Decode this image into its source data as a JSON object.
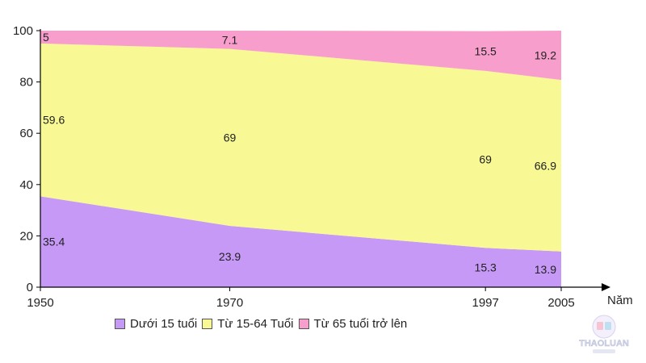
{
  "chart_data": {
    "type": "area",
    "stacked": true,
    "title": "",
    "xlabel": "Năm",
    "ylabel": "",
    "ylim": [
      0,
      100
    ],
    "yticks": [
      0,
      20,
      40,
      60,
      80,
      100
    ],
    "x": [
      1950,
      1970,
      1997,
      2005
    ],
    "series": [
      {
        "name": "Dưới 15 tuổi",
        "color": "#c699f7",
        "values": [
          35.4,
          23.9,
          15.3,
          13.9
        ]
      },
      {
        "name": "Từ 15-64 Tuổi",
        "color": "#f8f895",
        "values": [
          59.6,
          69,
          69,
          66.9
        ]
      },
      {
        "name": "Từ 65 tuổi trở lên",
        "color": "#f89ecd",
        "values": [
          5,
          7.1,
          15.5,
          19.2
        ]
      }
    ],
    "legend_position": "bottom",
    "grid": false
  },
  "watermark": {
    "text": "THAOLUAN"
  }
}
